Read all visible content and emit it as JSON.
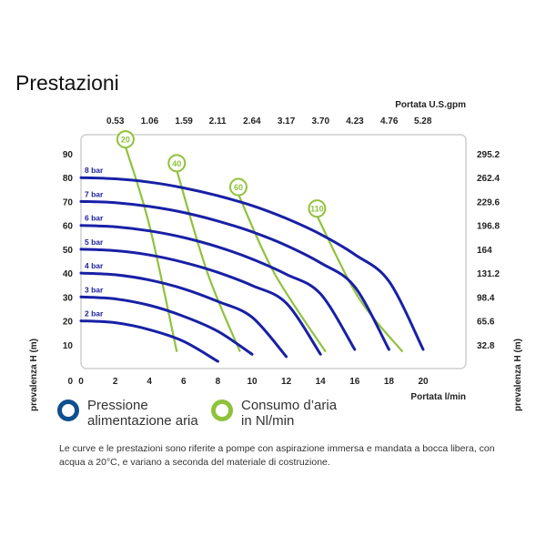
{
  "title": "Prestazioni",
  "chart_data": {
    "type": "line",
    "x_axis": {
      "label": "Portata  l/min",
      "ticks": [
        0,
        2,
        4,
        6,
        8,
        10,
        12,
        14,
        16,
        18,
        20
      ],
      "range": [
        0,
        22.5
      ]
    },
    "x_axis_top": {
      "label": "Portata U.S.gpm",
      "ticks": [
        "0.53",
        "1.06",
        "1.59",
        "2.11",
        "2.64",
        "3.17",
        "3.70",
        "4.23",
        "4.76",
        "5.28"
      ]
    },
    "y_axis": {
      "label": "prevalenza  H (m)",
      "ticks": [
        10,
        20,
        30,
        40,
        50,
        60,
        70,
        80,
        90
      ],
      "range": [
        0,
        98
      ]
    },
    "y_axis_right": {
      "label": "prevalenza  H (m)",
      "ticks": [
        "32.8",
        "65.6",
        "98.4",
        "131.2",
        "164",
        "196.8",
        "229.6",
        "262.4",
        "295.2"
      ]
    },
    "series": [
      {
        "name": "2 bar",
        "group": "pressure",
        "points": [
          [
            0,
            20
          ],
          [
            2,
            19.2
          ],
          [
            4,
            16.3
          ],
          [
            6,
            11.4
          ],
          [
            8,
            3
          ]
        ]
      },
      {
        "name": "3 bar",
        "group": "pressure",
        "points": [
          [
            0,
            30
          ],
          [
            2,
            29.2
          ],
          [
            4,
            26.5
          ],
          [
            6,
            21.9
          ],
          [
            8,
            15.6
          ],
          [
            10,
            6
          ]
        ]
      },
      {
        "name": "4 bar",
        "group": "pressure",
        "points": [
          [
            0,
            40
          ],
          [
            2,
            39.3
          ],
          [
            4,
            37.1
          ],
          [
            6,
            33.4
          ],
          [
            8,
            28.1
          ],
          [
            10,
            21.5
          ],
          [
            12,
            5
          ]
        ]
      },
      {
        "name": "5 bar",
        "group": "pressure",
        "points": [
          [
            0,
            50
          ],
          [
            2,
            49.4
          ],
          [
            4,
            47.6
          ],
          [
            6,
            44.5
          ],
          [
            8,
            40.3
          ],
          [
            10,
            34.8
          ],
          [
            12,
            27.4
          ],
          [
            14,
            6
          ]
        ]
      },
      {
        "name": "6 bar",
        "group": "pressure",
        "points": [
          [
            0,
            60
          ],
          [
            2,
            59.4
          ],
          [
            4,
            57.7
          ],
          [
            6,
            54.9
          ],
          [
            8,
            51
          ],
          [
            10,
            45.9
          ],
          [
            12,
            39.5
          ],
          [
            14,
            31.3
          ],
          [
            16,
            8
          ]
        ]
      },
      {
        "name": "7 bar",
        "group": "pressure",
        "points": [
          [
            0,
            70
          ],
          [
            2,
            69.5
          ],
          [
            4,
            67.9
          ],
          [
            6,
            65.4
          ],
          [
            8,
            61.8
          ],
          [
            10,
            57.3
          ],
          [
            12,
            51.6
          ],
          [
            14,
            44.3
          ],
          [
            16,
            34.3
          ],
          [
            18,
            8
          ]
        ]
      },
      {
        "name": "8 bar",
        "group": "pressure",
        "points": [
          [
            0,
            80
          ],
          [
            2,
            79.5
          ],
          [
            4,
            78.1
          ],
          [
            6,
            75.7
          ],
          [
            8,
            72.4
          ],
          [
            10,
            68.3
          ],
          [
            12,
            62.9
          ],
          [
            14,
            56.3
          ],
          [
            16,
            47.8
          ],
          [
            18,
            36.6
          ],
          [
            20,
            8
          ]
        ]
      },
      {
        "name": "20",
        "group": "air",
        "points": [
          [
            2.6,
            93
          ],
          [
            4,
            60
          ],
          [
            5.6,
            7
          ]
        ]
      },
      {
        "name": "40",
        "group": "air",
        "points": [
          [
            5.6,
            83
          ],
          [
            7.4,
            40
          ],
          [
            9.3,
            7
          ]
        ]
      },
      {
        "name": "60",
        "group": "air",
        "points": [
          [
            9.2,
            73
          ],
          [
            11.3,
            40
          ],
          [
            14.3,
            7
          ]
        ]
      },
      {
        "name": "110",
        "group": "air",
        "points": [
          [
            13.8,
            64
          ],
          [
            16.2,
            30
          ],
          [
            18.8,
            7
          ]
        ]
      }
    ],
    "legend": [
      {
        "text": "Pressione\nalimentazione aria",
        "color": "#0f4f8e"
      },
      {
        "text": "Consumo d’aria\nin Nl/min",
        "color": "#8fc23c"
      }
    ],
    "grid": false,
    "colors": {
      "pressure": "#1820a6",
      "air": "#8fc23c",
      "frame": "#cfcfcf",
      "label": "#1a1fa0"
    }
  },
  "note": "Le curve e le prestazioni sono riferite a pompe con aspirazione immersa e mandata a bocca libera, con acqua a 20°C, e variano a seconda del materiale di costruzione."
}
